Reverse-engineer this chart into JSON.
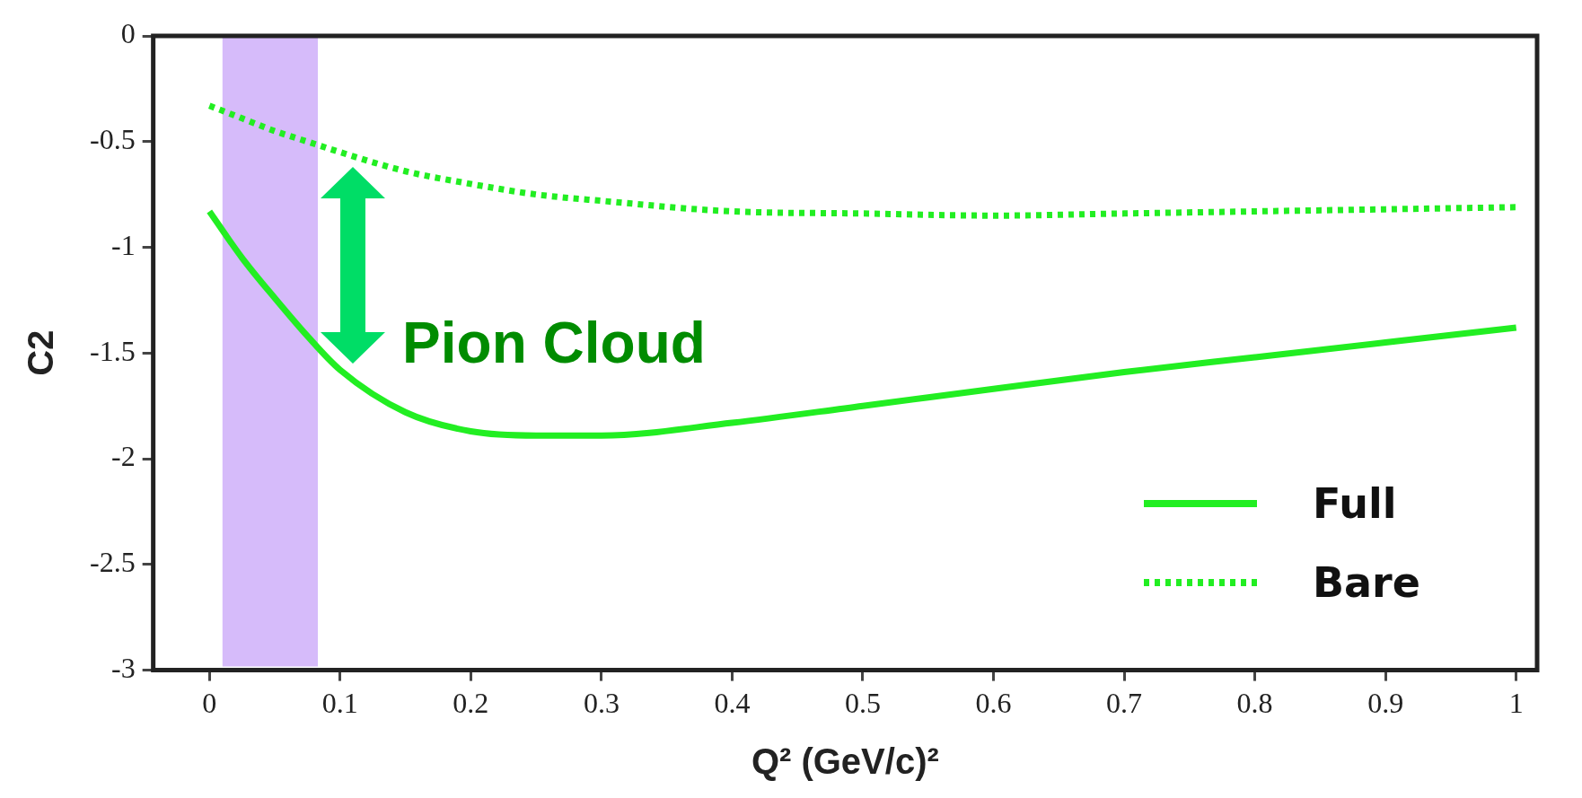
{
  "chart_data": {
    "type": "line",
    "xlabel": "Q² (GeV/c)²",
    "ylabel": "C2",
    "xlim": [
      -0.043,
      1.016
    ],
    "ylim": [
      -3,
      0
    ],
    "xticks": [
      0,
      0.1,
      0.2,
      0.3,
      0.4,
      0.5,
      0.6,
      0.7,
      0.8,
      0.9,
      1
    ],
    "yticks": [
      0,
      -0.5,
      -1,
      -1.5,
      -2,
      -2.5,
      -3
    ],
    "x": [
      0,
      0.025,
      0.05,
      0.075,
      0.1,
      0.15,
      0.2,
      0.25,
      0.3,
      0.4,
      0.5,
      0.6,
      0.7,
      0.8,
      0.9,
      1
    ],
    "series": [
      {
        "name": "Full",
        "color": "#22ee22",
        "line_style": "solid",
        "values": [
          -0.83,
          -1.05,
          -1.24,
          -1.42,
          -1.58,
          -1.78,
          -1.87,
          -1.89,
          -1.89,
          -1.83,
          -1.75,
          -1.67,
          -1.59,
          -1.52,
          -1.45,
          -1.38
        ]
      },
      {
        "name": "Bare",
        "color": "#22ee22",
        "line_style": "dotted",
        "values": [
          -0.33,
          -0.39,
          -0.45,
          -0.5,
          -0.55,
          -0.64,
          -0.7,
          -0.75,
          -0.78,
          -0.83,
          -0.84,
          -0.85,
          -0.84,
          -0.83,
          -0.82,
          -0.81
        ]
      }
    ],
    "bands": [
      {
        "axis": "x",
        "from": 0.01,
        "to": 0.083,
        "color": "#d6bbfa"
      }
    ],
    "annotations": [
      "Pion Cloud"
    ],
    "legend": "bottom right",
    "grid": false,
    "marker": "none"
  }
}
